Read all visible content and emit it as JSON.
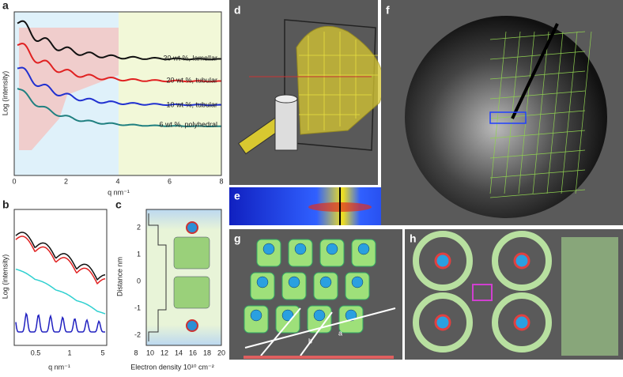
{
  "panels": {
    "a": {
      "label": "a",
      "y_label": "Log (intensity)",
      "x_label": "q nm⁻¹",
      "x_ticks": [
        "0",
        "2",
        "4",
        "6",
        "8"
      ],
      "annotations": [
        "30 wt %, lamellar",
        "20 wt %, tubular",
        "10 wt %, tubular",
        "6 wt %, polyhedral"
      ]
    },
    "b": {
      "label": "b",
      "y_label": "Log (intensity)",
      "x_label": "q nm⁻¹",
      "x_ticks": [
        "0.5",
        "1",
        "5"
      ]
    },
    "c": {
      "label": "c",
      "y_label": "Distance nm",
      "x_label": "Electron density 10¹⁰ cm⁻²",
      "y_ticks": [
        "2",
        "1",
        "0",
        "-1",
        "-2"
      ],
      "x_ticks": [
        "8",
        "10",
        "12",
        "14",
        "16",
        "18",
        "20"
      ]
    },
    "d": {
      "label": "d"
    },
    "e": {
      "label": "e"
    },
    "f": {
      "label": "f"
    },
    "g": {
      "label": "g",
      "axis_labels": [
        "a",
        "b"
      ]
    },
    "h": {
      "label": "h"
    }
  }
}
